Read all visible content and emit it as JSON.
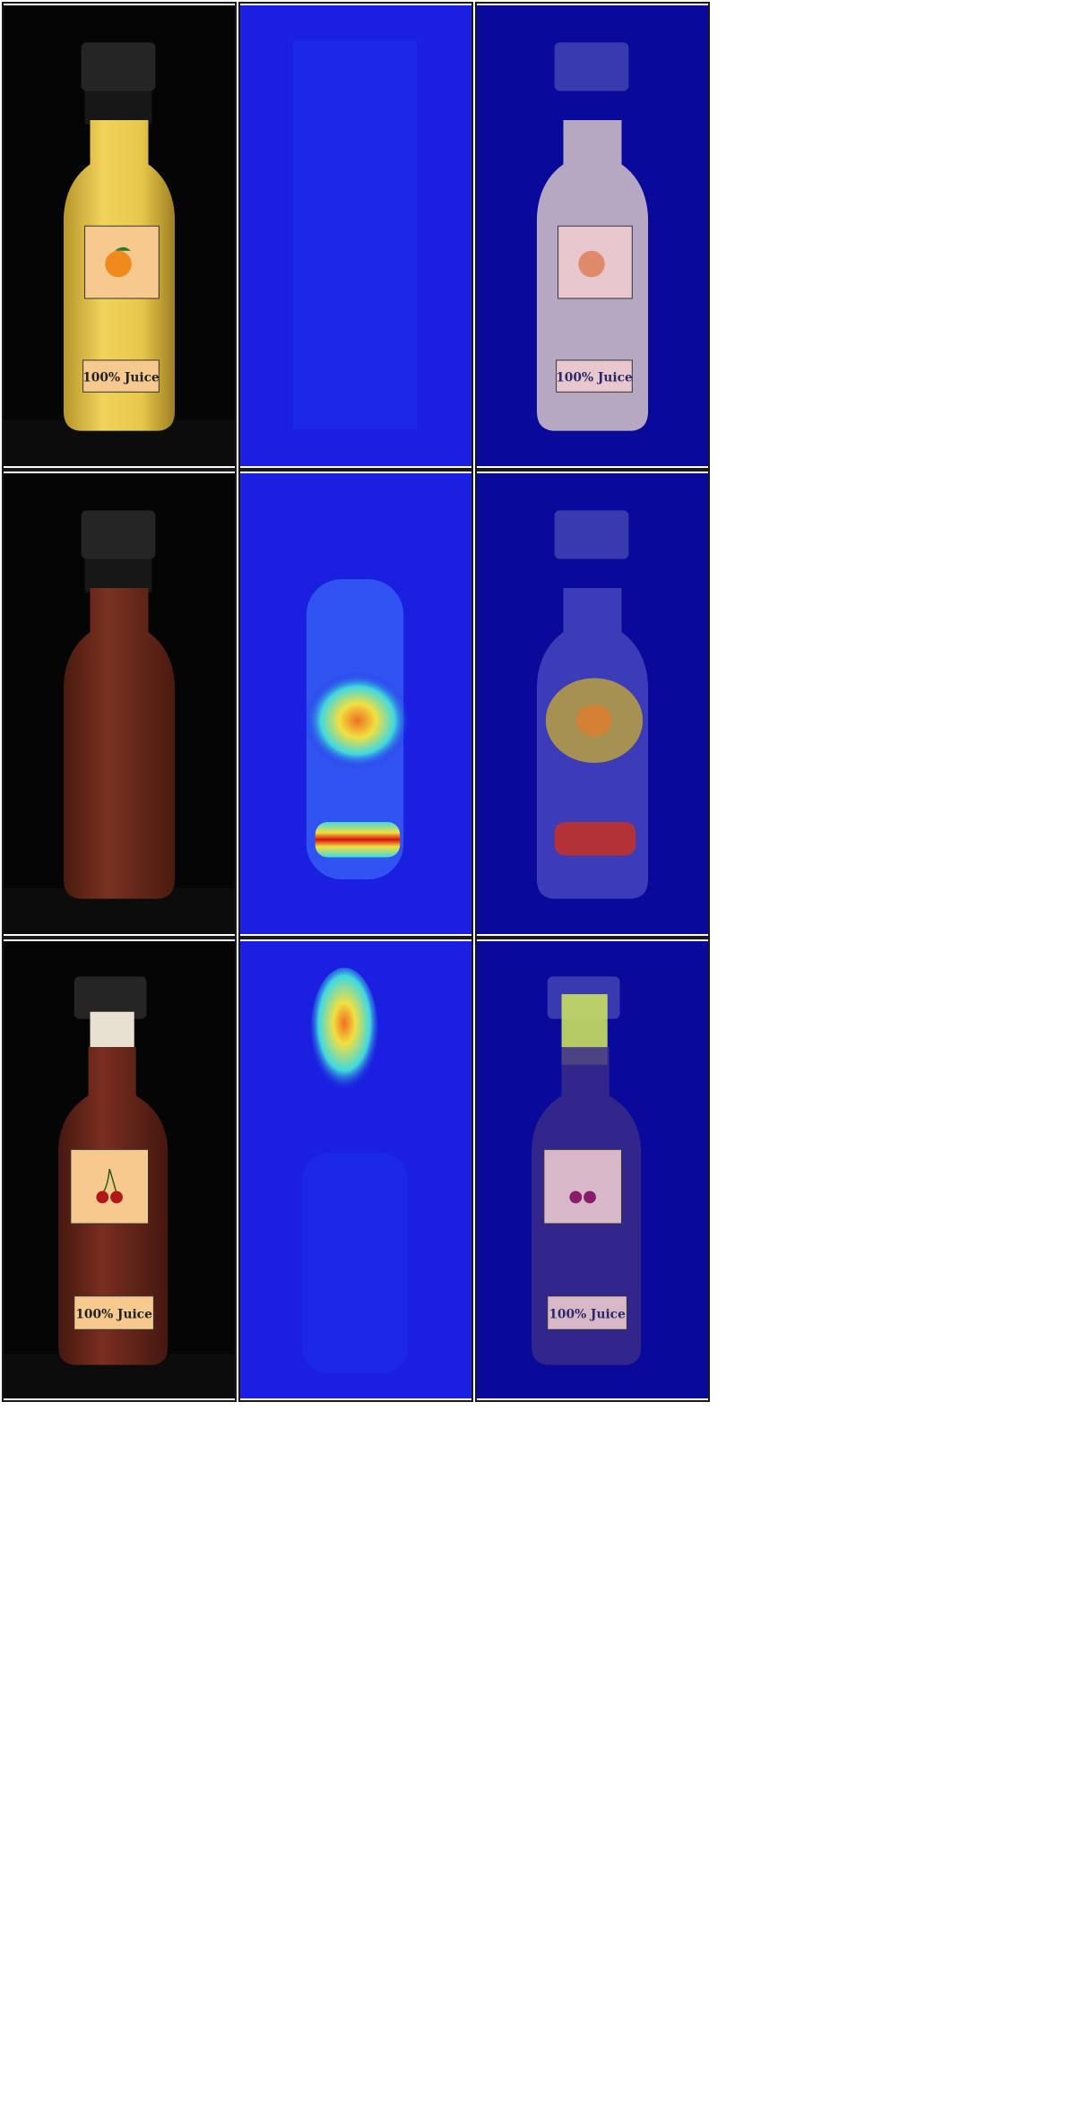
{
  "figure": {
    "rows": [
      {
        "id": "orange-juice",
        "label_text": "100% Juice",
        "fruit_icon": "orange-icon",
        "liquid_color": "#e8c84a"
      },
      {
        "id": "dark-juice-no-label",
        "label_text": "",
        "fruit_icon": "",
        "liquid_color": "#6e2a1c"
      },
      {
        "id": "cherry-juice",
        "label_text": "100% Juice",
        "fruit_icon": "cherry-icon",
        "liquid_color": "#6b2418"
      }
    ],
    "columns": [
      "original",
      "heatmap",
      "overlay"
    ],
    "colors": {
      "background": "#050505",
      "heatmap_cold": "#1a1fe0",
      "heatmap_hot": "#d81010",
      "overlay_tint": "#0a0a9a"
    }
  }
}
